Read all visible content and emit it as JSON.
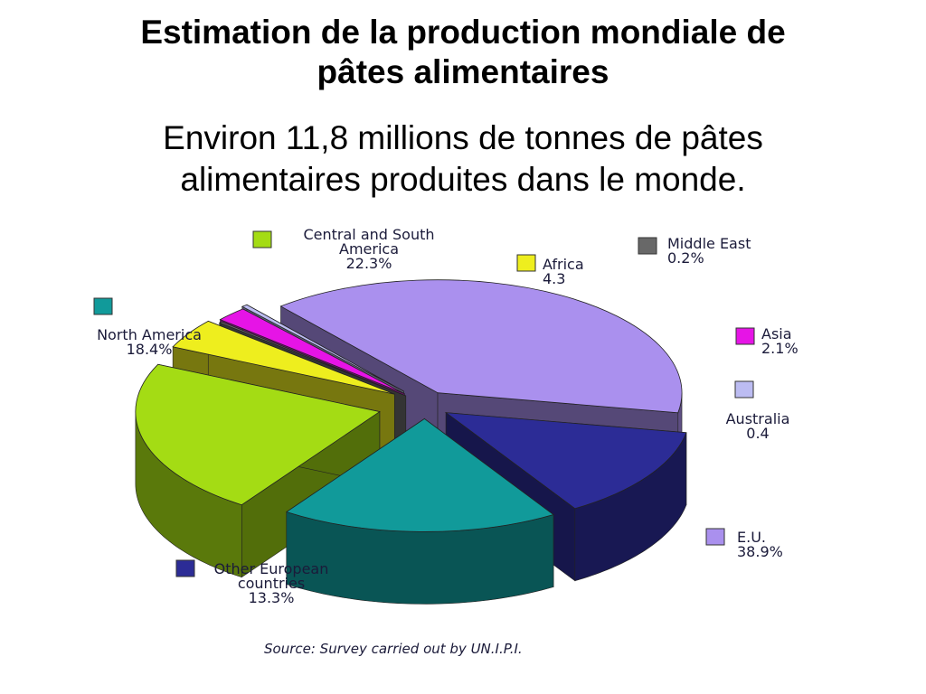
{
  "slide": {
    "title_line1": "Estimation de la production mondiale de",
    "title_line2": "pâtes alimentaires",
    "subtitle_line1": "Environ 11,8 millions de tonnes de pâtes",
    "subtitle_line2": "alimentaires produites dans le monde."
  },
  "chart_data": {
    "type": "pie",
    "title": "",
    "source": "Source: Survey carried out by UN.I.P.I.",
    "slices": [
      {
        "key": "eu",
        "label_lines": [
          "E.U."
        ],
        "value_text": "38.9%",
        "value": 38.9,
        "color": "#aa90ee"
      },
      {
        "key": "other-european",
        "label_lines": [
          "Other European",
          "countries"
        ],
        "value_text": "13.3%",
        "value": 13.3,
        "color": "#2c2c96"
      },
      {
        "key": "north-america",
        "label_lines": [
          "North America"
        ],
        "value_text": "18.4%",
        "value": 18.4,
        "color": "#119a9a"
      },
      {
        "key": "central-south-america",
        "label_lines": [
          "Central and South",
          "America"
        ],
        "value_text": "22.3%",
        "value": 22.3,
        "color": "#a4dc14"
      },
      {
        "key": "africa",
        "label_lines": [
          "Africa"
        ],
        "value_text": "4.3",
        "value": 4.3,
        "color": "#eeee1e"
      },
      {
        "key": "middle-east",
        "label_lines": [
          "Middle East"
        ],
        "value_text": "0.2%",
        "value": 0.2,
        "color": "#686868"
      },
      {
        "key": "asia",
        "label_lines": [
          "Asia"
        ],
        "value_text": "2.1%",
        "value": 2.1,
        "color": "#e614e6"
      },
      {
        "key": "australia",
        "label_lines": [
          "Australia"
        ],
        "value_text": "0.4",
        "value": 0.4,
        "color": "#bcbcf2"
      }
    ],
    "legend_placement": "around-slices"
  }
}
